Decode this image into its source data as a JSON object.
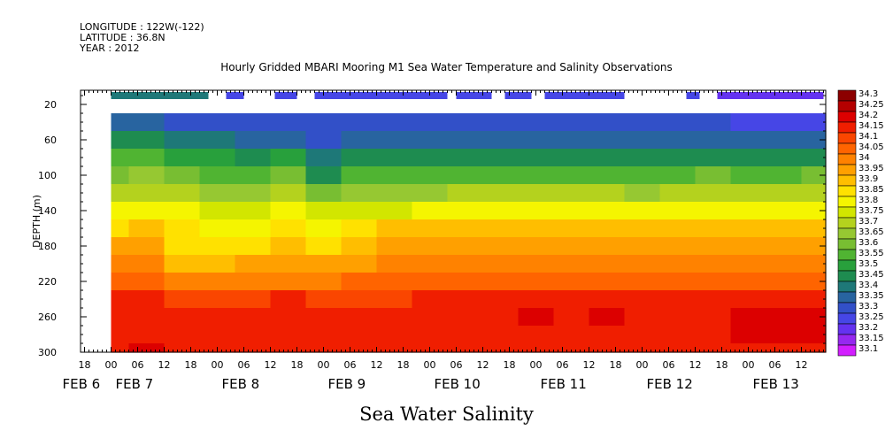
{
  "header": {
    "longitude": "LONGITUDE : 122W(-122)",
    "latitude": "LATITUDE : 36.8N",
    "year": "YEAR : 2012"
  },
  "chart_data": {
    "type": "heatmap",
    "title": "Hourly Gridded MBARI Mooring M1 Sea Water Temperature and Salinity Observations",
    "xlabel": "Sea Water Salinity",
    "ylabel": "DEPTH (m)",
    "x_range_hours": [
      0,
      168
    ],
    "ylim": [
      300,
      0
    ],
    "y_ticks": [
      20,
      60,
      100,
      140,
      180,
      220,
      260,
      300
    ],
    "x_hour_ticks": [
      {
        "t": -6,
        "label": "18"
      },
      {
        "t": 0,
        "label": "00"
      },
      {
        "t": 6,
        "label": "06"
      },
      {
        "t": 12,
        "label": "12"
      },
      {
        "t": 18,
        "label": "18"
      },
      {
        "t": 24,
        "label": "00"
      },
      {
        "t": 30,
        "label": "06"
      },
      {
        "t": 36,
        "label": "12"
      },
      {
        "t": 42,
        "label": "18"
      },
      {
        "t": 48,
        "label": "00"
      },
      {
        "t": 54,
        "label": "06"
      },
      {
        "t": 60,
        "label": "12"
      },
      {
        "t": 66,
        "label": "18"
      },
      {
        "t": 72,
        "label": "00"
      },
      {
        "t": 78,
        "label": "06"
      },
      {
        "t": 84,
        "label": "12"
      },
      {
        "t": 90,
        "label": "18"
      },
      {
        "t": 96,
        "label": "00"
      },
      {
        "t": 102,
        "label": "06"
      },
      {
        "t": 108,
        "label": "12"
      },
      {
        "t": 114,
        "label": "18"
      },
      {
        "t": 120,
        "label": "00"
      },
      {
        "t": 126,
        "label": "06"
      },
      {
        "t": 132,
        "label": "12"
      },
      {
        "t": 138,
        "label": "18"
      },
      {
        "t": 144,
        "label": "00"
      },
      {
        "t": 150,
        "label": "06"
      },
      {
        "t": 156,
        "label": "12"
      }
    ],
    "date_labels": [
      {
        "t": -6,
        "label": "FEB  6"
      },
      {
        "t": 6,
        "label": "FEB  7"
      },
      {
        "t": 30,
        "label": "FEB  8"
      },
      {
        "t": 54,
        "label": "FEB  9"
      },
      {
        "t": 78,
        "label": "FEB 10"
      },
      {
        "t": 102,
        "label": "FEB 11"
      },
      {
        "t": 126,
        "label": "FEB 12"
      },
      {
        "t": 150,
        "label": "FEB 13"
      }
    ],
    "surface_segments": [
      {
        "t0": 0,
        "t1": 22,
        "value": 33.4
      },
      {
        "t0": 26,
        "t1": 30,
        "value": 33.25
      },
      {
        "t0": 37,
        "t1": 42,
        "value": 33.25
      },
      {
        "t0": 46,
        "t1": 76,
        "value": 33.25
      },
      {
        "t0": 78,
        "t1": 86,
        "value": 33.25
      },
      {
        "t0": 89,
        "t1": 95,
        "value": 33.25
      },
      {
        "t0": 98,
        "t1": 116,
        "value": 33.25
      },
      {
        "t0": 130,
        "t1": 133,
        "value": 33.25
      },
      {
        "t0": 137,
        "t1": 161,
        "value": 33.2
      }
    ],
    "columns_hours": [
      0,
      8,
      16,
      24,
      32,
      40,
      48,
      56,
      64,
      72,
      80,
      88,
      96,
      104,
      112,
      120,
      128,
      136,
      144,
      152,
      160
    ],
    "depth_levels_m": [
      40,
      60,
      80,
      100,
      120,
      140,
      160,
      180,
      200,
      220,
      240,
      260,
      280,
      300
    ],
    "values": [
      [
        33.35,
        33.45,
        33.55,
        33.62,
        33.72,
        33.8,
        33.88,
        33.95,
        34.0,
        34.08,
        34.15,
        34.19,
        34.17,
        34.18
      ],
      [
        33.35,
        33.45,
        33.55,
        33.66,
        33.74,
        33.84,
        33.9,
        33.95,
        34.0,
        34.08,
        34.15,
        34.18,
        34.18,
        34.2
      ],
      [
        33.3,
        33.4,
        33.5,
        33.6,
        33.7,
        33.8,
        33.85,
        33.88,
        33.92,
        34.0,
        34.12,
        34.16,
        34.18,
        34.18
      ],
      [
        33.3,
        33.4,
        33.5,
        33.58,
        33.68,
        33.78,
        33.84,
        33.86,
        33.92,
        34.0,
        34.12,
        34.16,
        34.17,
        34.18
      ],
      [
        33.3,
        33.38,
        33.48,
        33.58,
        33.68,
        33.78,
        33.84,
        33.86,
        33.95,
        34.04,
        34.14,
        34.18,
        34.18,
        34.17
      ],
      [
        33.3,
        33.38,
        33.5,
        33.6,
        33.7,
        33.8,
        33.86,
        33.9,
        33.95,
        34.04,
        34.15,
        34.18,
        34.18,
        34.18
      ],
      [
        33.3,
        33.32,
        33.4,
        33.48,
        33.62,
        33.75,
        33.84,
        33.88,
        33.95,
        34.04,
        34.14,
        34.18,
        34.18,
        34.18
      ],
      [
        33.3,
        33.38,
        33.48,
        33.56,
        33.66,
        33.76,
        33.86,
        33.92,
        33.98,
        34.06,
        34.14,
        34.18,
        34.19,
        34.18
      ],
      [
        33.3,
        33.36,
        33.45,
        33.55,
        33.65,
        33.78,
        33.9,
        33.96,
        34.0,
        34.06,
        34.14,
        34.19,
        34.18,
        34.18
      ],
      [
        33.3,
        33.38,
        33.47,
        33.56,
        33.67,
        33.8,
        33.92,
        33.98,
        34.02,
        34.06,
        34.16,
        34.18,
        34.19,
        34.18
      ],
      [
        33.3,
        33.38,
        33.48,
        33.58,
        33.7,
        33.82,
        33.92,
        33.96,
        34.0,
        34.08,
        34.16,
        34.19,
        34.18,
        34.18
      ],
      [
        33.3,
        33.38,
        33.48,
        33.58,
        33.7,
        33.84,
        33.93,
        33.97,
        34.02,
        34.08,
        34.15,
        34.19,
        34.18,
        34.17
      ],
      [
        33.3,
        33.38,
        33.48,
        33.58,
        33.7,
        33.84,
        33.94,
        33.98,
        34.02,
        34.08,
        34.15,
        34.2,
        34.19,
        34.18
      ],
      [
        33.3,
        33.38,
        33.48,
        33.58,
        33.7,
        33.84,
        33.93,
        33.97,
        34.02,
        34.08,
        34.15,
        34.19,
        34.18,
        34.18
      ],
      [
        33.3,
        33.38,
        33.48,
        33.58,
        33.7,
        33.84,
        33.94,
        33.98,
        34.02,
        34.08,
        34.15,
        34.2,
        34.18,
        34.18
      ],
      [
        33.3,
        33.36,
        33.46,
        33.56,
        33.68,
        33.82,
        33.94,
        33.98,
        34.02,
        34.08,
        34.15,
        34.19,
        34.18,
        34.18
      ],
      [
        33.3,
        33.38,
        33.48,
        33.58,
        33.7,
        33.84,
        33.93,
        33.96,
        34.0,
        34.08,
        34.15,
        34.19,
        34.18,
        34.18
      ],
      [
        33.3,
        33.38,
        33.48,
        33.6,
        33.7,
        33.84,
        33.94,
        33.97,
        34.02,
        34.08,
        34.16,
        34.19,
        34.18,
        34.18
      ],
      [
        33.25,
        33.36,
        33.46,
        33.58,
        33.7,
        33.84,
        33.93,
        33.96,
        34.02,
        34.08,
        34.16,
        34.22,
        34.2,
        34.18
      ],
      [
        33.25,
        33.35,
        33.46,
        33.58,
        33.7,
        33.84,
        33.92,
        33.97,
        34.02,
        34.08,
        34.16,
        34.24,
        34.22,
        34.19
      ],
      [
        33.25,
        33.36,
        33.48,
        33.6,
        33.72,
        33.84,
        33.93,
        33.97,
        34.02,
        34.08,
        34.16,
        34.22,
        34.2,
        34.18
      ]
    ],
    "legend": {
      "position": "right",
      "levels": [
        {
          "label": "34.3",
          "color": "#8c0000"
        },
        {
          "label": "34.25",
          "color": "#b40000"
        },
        {
          "label": "34.2",
          "color": "#dc0000"
        },
        {
          "label": "34.15",
          "color": "#f01e00"
        },
        {
          "label": "34.1",
          "color": "#fa4600"
        },
        {
          "label": "34.05",
          "color": "#ff6400"
        },
        {
          "label": "34",
          "color": "#ff8200"
        },
        {
          "label": "33.95",
          "color": "#ffa000"
        },
        {
          "label": "33.9",
          "color": "#ffbe00"
        },
        {
          "label": "33.85",
          "color": "#ffe100"
        },
        {
          "label": "33.8",
          "color": "#f5f500"
        },
        {
          "label": "33.75",
          "color": "#d2e600"
        },
        {
          "label": "33.7",
          "color": "#b4d21e"
        },
        {
          "label": "33.65",
          "color": "#96c832"
        },
        {
          "label": "33.6",
          "color": "#78be32"
        },
        {
          "label": "33.55",
          "color": "#50b432"
        },
        {
          "label": "33.5",
          "color": "#28a03c"
        },
        {
          "label": "33.45",
          "color": "#1e8c50"
        },
        {
          "label": "33.4",
          "color": "#1e7878"
        },
        {
          "label": "33.35",
          "color": "#2864a0"
        },
        {
          "label": "33.3",
          "color": "#3250c8"
        },
        {
          "label": "33.25",
          "color": "#4646e6"
        },
        {
          "label": "33.2",
          "color": "#6432f0"
        },
        {
          "label": "33.15",
          "color": "#9628f0"
        },
        {
          "label": "33.1",
          "color": "#d21eff"
        }
      ]
    }
  }
}
